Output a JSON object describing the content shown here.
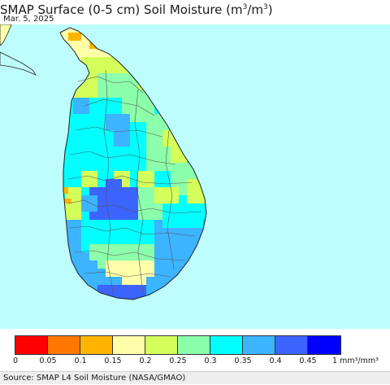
{
  "header": {
    "title_main": "SMAP Surface (0-5 cm) Soil Moisture (m",
    "title_sup1": "3",
    "title_slash": "/m",
    "title_sup2": "3",
    "title_close": ")",
    "date": "Mar. 5, 2025"
  },
  "legend": {
    "colors": [
      "#ff0000",
      "#ff7700",
      "#ffb400",
      "#ffffaa",
      "#d4ff5a",
      "#8cffaa",
      "#00ffff",
      "#3cb4ff",
      "#3c64ff",
      "#0000ff"
    ],
    "ticks": [
      "0",
      "0.05",
      "0.1",
      "0.15",
      "0.2",
      "0.25",
      "0.3",
      "0.35",
      "0.4",
      "0.45"
    ],
    "last_tick": "1 mm³/mm³"
  },
  "source": "Source: SMAP L4 Soil Moisture (NASA/GMAO)",
  "map": {
    "ocean_color": "#bdfdfd",
    "region": "Sri Lanka"
  }
}
